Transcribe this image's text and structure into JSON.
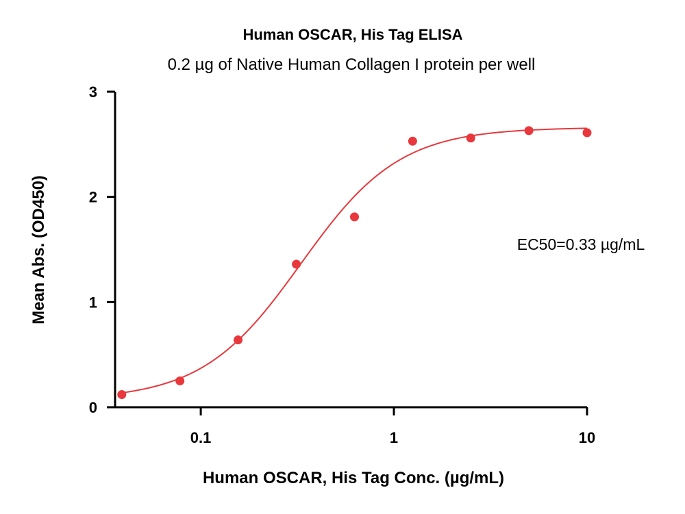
{
  "chart_data": {
    "type": "scatter",
    "title": "Human OSCAR, His Tag ELISA",
    "subtitle": "0.2 µg of Native Human Collagen I protein per well",
    "xlabel": "Human OSCAR, His Tag Conc. (µg/mL)",
    "ylabel": "Mean Abs. (OD450)",
    "x_scale": "log",
    "xlim": [
      0.036,
      10
    ],
    "ylim": [
      0,
      3
    ],
    "x_ticks": [
      {
        "value": 0.1,
        "label": "0.1"
      },
      {
        "value": 1,
        "label": "1"
      },
      {
        "value": 10,
        "label": "10"
      }
    ],
    "y_ticks": [
      {
        "value": 0,
        "label": "0"
      },
      {
        "value": 1,
        "label": "1"
      },
      {
        "value": 2,
        "label": "2"
      },
      {
        "value": 3,
        "label": "3"
      }
    ],
    "series": [
      {
        "x": [
          0.039,
          0.078,
          0.156,
          0.3125,
          0.625,
          1.25,
          2.5,
          5,
          10
        ],
        "y": [
          0.12,
          0.25,
          0.64,
          1.36,
          1.81,
          2.53,
          2.56,
          2.63,
          2.61
        ],
        "color": "#e8383d"
      }
    ],
    "fit_curve": {
      "model": "4PL",
      "bottom": 0.07,
      "top": 2.66,
      "ec50": 0.33,
      "hill": 1.7,
      "color": "#e8383d"
    },
    "annotations": [
      {
        "text": "EC50=0.33 µg/mL"
      }
    ],
    "grid": false,
    "legend": "none"
  }
}
